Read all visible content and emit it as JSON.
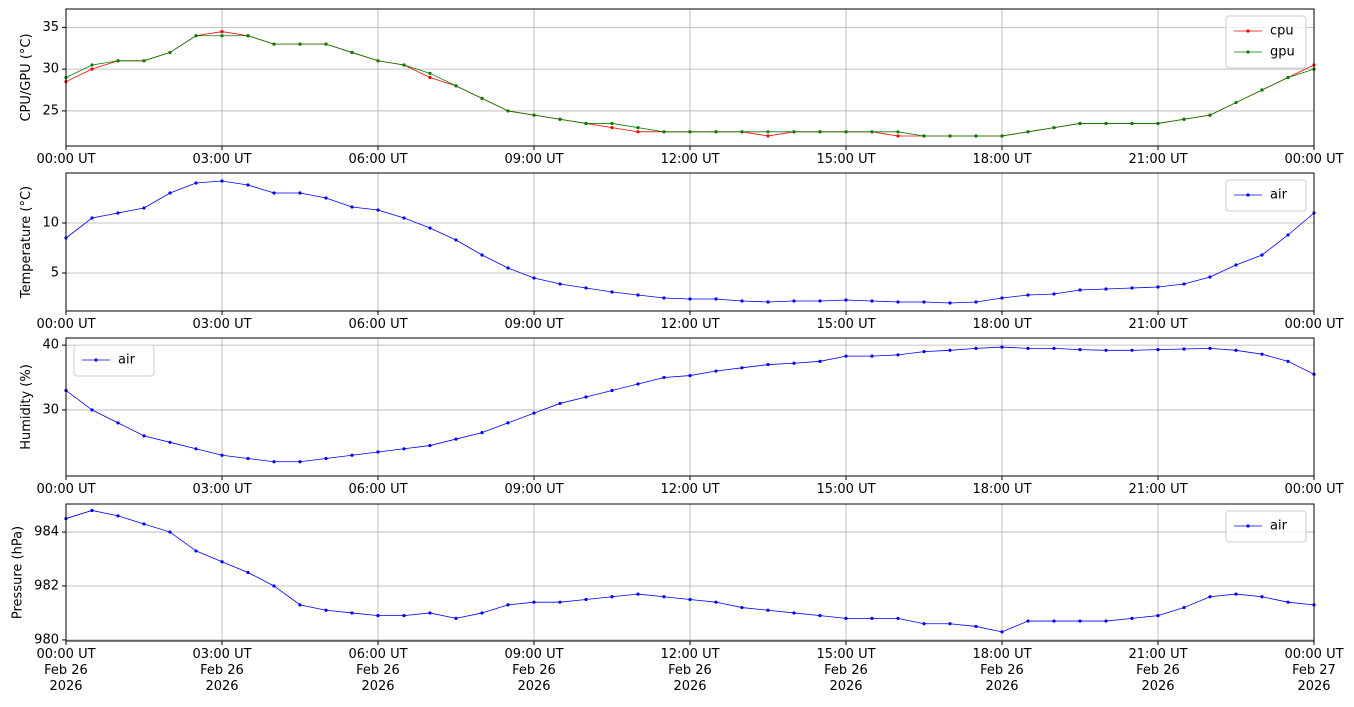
{
  "chart_data": [
    {
      "type": "line",
      "ylabel": "CPU/GPU (°C)",
      "legend": "upper right",
      "grid": true,
      "x": [
        0,
        0.5,
        1,
        1.5,
        2,
        2.5,
        3,
        3.5,
        4,
        4.5,
        5,
        5.5,
        6,
        6.5,
        7,
        7.5,
        8,
        8.5,
        9,
        9.5,
        10,
        10.5,
        11,
        11.5,
        12,
        12.5,
        13,
        13.5,
        14,
        14.5,
        15,
        15.5,
        16,
        16.5,
        17,
        17.5,
        18,
        18.5,
        19,
        19.5,
        20,
        20.5,
        21,
        21.5,
        22,
        22.5,
        23,
        23.5,
        24
      ],
      "xlim": [
        0,
        24
      ],
      "xticks": [
        {
          "value": 0,
          "label": "00:00 UT"
        },
        {
          "value": 3,
          "label": "03:00 UT"
        },
        {
          "value": 6,
          "label": "06:00 UT"
        },
        {
          "value": 9,
          "label": "09:00 UT"
        },
        {
          "value": 12,
          "label": "12:00 UT"
        },
        {
          "value": 15,
          "label": "15:00 UT"
        },
        {
          "value": 18,
          "label": "18:00 UT"
        },
        {
          "value": 21,
          "label": "21:00 UT"
        },
        {
          "value": 24,
          "label": "00:00 UT"
        }
      ],
      "ylim": [
        20.8,
        37.2
      ],
      "yticks": [
        25,
        30,
        35
      ],
      "series": [
        {
          "name": "cpu",
          "color": "#ff0000",
          "values": [
            28.5,
            30,
            31,
            31,
            32,
            34,
            34.5,
            34,
            33,
            33,
            33,
            32,
            31,
            30.5,
            29,
            28,
            26.5,
            25,
            24.5,
            24,
            23.5,
            23,
            22.5,
            22.5,
            22.5,
            22.5,
            22.5,
            22,
            22.5,
            22.5,
            22.5,
            22.5,
            22,
            22,
            22,
            22,
            22,
            22.5,
            23,
            23.5,
            23.5,
            23.5,
            23.5,
            24,
            24.5,
            26,
            27.5,
            29,
            30.5
          ]
        },
        {
          "name": "gpu",
          "color": "#008000",
          "values": [
            29,
            30.5,
            31,
            31,
            32,
            34,
            34,
            34,
            33,
            33,
            33,
            32,
            31,
            30.5,
            29.5,
            28,
            26.5,
            25,
            24.5,
            24,
            23.5,
            23.5,
            23,
            22.5,
            22.5,
            22.5,
            22.5,
            22.5,
            22.5,
            22.5,
            22.5,
            22.5,
            22.5,
            22,
            22,
            22,
            22,
            22.5,
            23,
            23.5,
            23.5,
            23.5,
            23.5,
            24,
            24.5,
            26,
            27.5,
            29,
            30
          ]
        }
      ]
    },
    {
      "type": "line",
      "ylabel": "Temperature (°C)",
      "legend": "upper right",
      "grid": true,
      "x": [
        0,
        0.5,
        1,
        1.5,
        2,
        2.5,
        3,
        3.5,
        4,
        4.5,
        5,
        5.5,
        6,
        6.5,
        7,
        7.5,
        8,
        8.5,
        9,
        9.5,
        10,
        10.5,
        11,
        11.5,
        12,
        12.5,
        13,
        13.5,
        14,
        14.5,
        15,
        15.5,
        16,
        16.5,
        17,
        17.5,
        18,
        18.5,
        19,
        19.5,
        20,
        20.5,
        21,
        21.5,
        22,
        22.5,
        23,
        23.5,
        24
      ],
      "xlim": [
        0,
        24
      ],
      "xticks": [
        {
          "value": 0,
          "label": "00:00 UT"
        },
        {
          "value": 3,
          "label": "03:00 UT"
        },
        {
          "value": 6,
          "label": "06:00 UT"
        },
        {
          "value": 9,
          "label": "09:00 UT"
        },
        {
          "value": 12,
          "label": "12:00 UT"
        },
        {
          "value": 15,
          "label": "15:00 UT"
        },
        {
          "value": 18,
          "label": "18:00 UT"
        },
        {
          "value": 21,
          "label": "21:00 UT"
        },
        {
          "value": 24,
          "label": "00:00 UT"
        }
      ],
      "ylim": [
        1.2,
        15
      ],
      "yticks": [
        5,
        10
      ],
      "series": [
        {
          "name": "air",
          "color": "#0000ff",
          "values": [
            8.5,
            10.5,
            11,
            11.5,
            13,
            14,
            14.2,
            13.8,
            13,
            13,
            12.5,
            11.6,
            11.3,
            10.5,
            9.5,
            8.3,
            6.8,
            5.5,
            4.5,
            3.9,
            3.5,
            3.1,
            2.8,
            2.5,
            2.4,
            2.4,
            2.2,
            2.1,
            2.2,
            2.2,
            2.3,
            2.2,
            2.1,
            2.1,
            2,
            2.1,
            2.5,
            2.8,
            2.9,
            3.3,
            3.4,
            3.5,
            3.6,
            3.9,
            4.6,
            5.8,
            6.8,
            8.8,
            11
          ]
        }
      ]
    },
    {
      "type": "line",
      "ylabel": "Humidity (%)",
      "legend": "upper left",
      "grid": true,
      "x": [
        0,
        0.5,
        1,
        1.5,
        2,
        2.5,
        3,
        3.5,
        4,
        4.5,
        5,
        5.5,
        6,
        6.5,
        7,
        7.5,
        8,
        8.5,
        9,
        9.5,
        10,
        10.5,
        11,
        11.5,
        12,
        12.5,
        13,
        13.5,
        14,
        14.5,
        15,
        15.5,
        16,
        16.5,
        17,
        17.5,
        18,
        18.5,
        19,
        19.5,
        20,
        20.5,
        21,
        21.5,
        22,
        22.5,
        23,
        23.5,
        24
      ],
      "xlim": [
        0,
        24
      ],
      "xticks": [
        {
          "value": 0,
          "label": "00:00 UT"
        },
        {
          "value": 3,
          "label": "03:00 UT"
        },
        {
          "value": 6,
          "label": "06:00 UT"
        },
        {
          "value": 9,
          "label": "09:00 UT"
        },
        {
          "value": 12,
          "label": "12:00 UT"
        },
        {
          "value": 15,
          "label": "15:00 UT"
        },
        {
          "value": 18,
          "label": "18:00 UT"
        },
        {
          "value": 21,
          "label": "21:00 UT"
        },
        {
          "value": 24,
          "label": "00:00 UT"
        }
      ],
      "ylim": [
        19.8,
        41.1
      ],
      "yticks": [
        30,
        40
      ],
      "series": [
        {
          "name": "air",
          "color": "#0000ff",
          "values": [
            33,
            30,
            28,
            26,
            25,
            24,
            23,
            22.5,
            22,
            22,
            22.5,
            23,
            23.5,
            24,
            24.5,
            25.5,
            26.5,
            28,
            29.5,
            31,
            32,
            33,
            34,
            35,
            35.3,
            36,
            36.5,
            37,
            37.2,
            37.5,
            38.3,
            38.3,
            38.5,
            39,
            39.2,
            39.5,
            39.7,
            39.5,
            39.5,
            39.3,
            39.2,
            39.2,
            39.3,
            39.4,
            39.5,
            39.2,
            38.6,
            37.5,
            35.5
          ]
        }
      ]
    },
    {
      "type": "line",
      "ylabel": "Pressure (hPa)",
      "legend": "upper right",
      "grid": true,
      "x": [
        0,
        0.5,
        1,
        1.5,
        2,
        2.5,
        3,
        3.5,
        4,
        4.5,
        5,
        5.5,
        6,
        6.5,
        7,
        7.5,
        8,
        8.5,
        9,
        9.5,
        10,
        10.5,
        11,
        11.5,
        12,
        12.5,
        13,
        13.5,
        14,
        14.5,
        15,
        15.5,
        16,
        16.5,
        17,
        17.5,
        18,
        18.5,
        19,
        19.5,
        20,
        20.5,
        21,
        21.5,
        22,
        22.5,
        23,
        23.5,
        24
      ],
      "xlim": [
        0,
        24
      ],
      "xticks": [
        {
          "value": 0,
          "label": "00:00 UT\nFeb 26\n2026"
        },
        {
          "value": 3,
          "label": "03:00 UT\nFeb 26\n2026"
        },
        {
          "value": 6,
          "label": "06:00 UT\nFeb 26\n2026"
        },
        {
          "value": 9,
          "label": "09:00 UT\nFeb 26\n2026"
        },
        {
          "value": 12,
          "label": "12:00 UT\nFeb 26\n2026"
        },
        {
          "value": 15,
          "label": "15:00 UT\nFeb 26\n2026"
        },
        {
          "value": 18,
          "label": "18:00 UT\nFeb 26\n2026"
        },
        {
          "value": 21,
          "label": "21:00 UT\nFeb 26\n2026"
        },
        {
          "value": 24,
          "label": "00:00 UT\nFeb 27\n2026"
        }
      ],
      "ylim": [
        979.96,
        985.04
      ],
      "yticks": [
        980,
        982,
        984
      ],
      "series": [
        {
          "name": "air",
          "color": "#0000ff",
          "values": [
            984.5,
            984.8,
            984.6,
            984.3,
            984,
            983.3,
            982.9,
            982.5,
            982,
            981.3,
            981.1,
            981,
            980.9,
            980.9,
            981,
            980.8,
            981,
            981.3,
            981.4,
            981.4,
            981.5,
            981.6,
            981.7,
            981.6,
            981.5,
            981.4,
            981.2,
            981.1,
            981,
            980.9,
            980.8,
            980.8,
            980.8,
            980.6,
            980.6,
            980.5,
            980.3,
            980.7,
            980.7,
            980.7,
            980.7,
            980.8,
            980.9,
            981.2,
            981.6,
            981.7,
            981.6,
            981.4,
            981.3
          ]
        }
      ]
    }
  ]
}
